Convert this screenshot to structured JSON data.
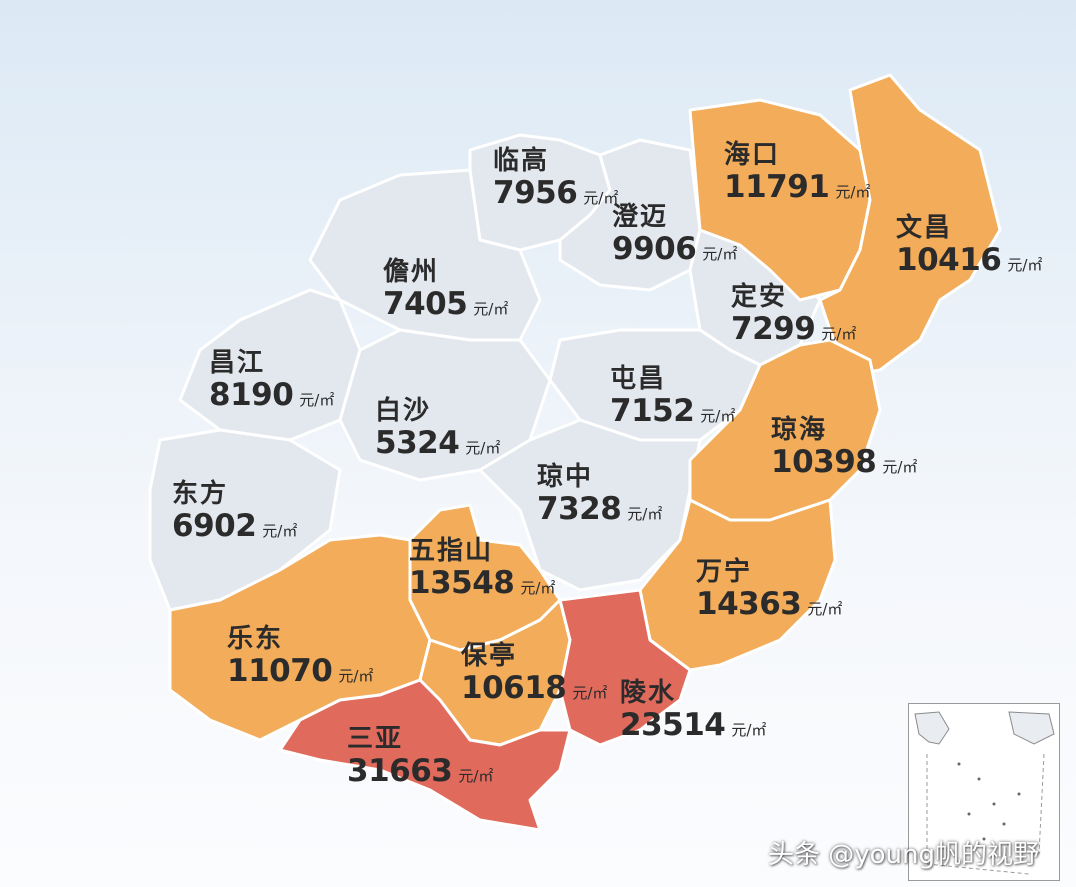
{
  "unit": "元/㎡",
  "colors": {
    "low": "#e3e8ef",
    "mid": "#f2ac5a",
    "high": "#e06a5c",
    "text": "#2b2b2b"
  },
  "regions": [
    {
      "name": "临高",
      "price": "7956",
      "tier": "low"
    },
    {
      "name": "澄迈",
      "price": "9906",
      "tier": "low"
    },
    {
      "name": "海口",
      "price": "11791",
      "tier": "mid"
    },
    {
      "name": "文昌",
      "price": "10416",
      "tier": "mid"
    },
    {
      "name": "儋州",
      "price": "7405",
      "tier": "low"
    },
    {
      "name": "定安",
      "price": "7299",
      "tier": "low"
    },
    {
      "name": "昌江",
      "price": "8190",
      "tier": "low"
    },
    {
      "name": "屯昌",
      "price": "7152",
      "tier": "low"
    },
    {
      "name": "白沙",
      "price": "5324",
      "tier": "low"
    },
    {
      "name": "琼海",
      "price": "10398",
      "tier": "mid"
    },
    {
      "name": "东方",
      "price": "6902",
      "tier": "low"
    },
    {
      "name": "琼中",
      "price": "7328",
      "tier": "low"
    },
    {
      "name": "五指山",
      "price": "13548",
      "tier": "mid"
    },
    {
      "name": "万宁",
      "price": "14363",
      "tier": "mid"
    },
    {
      "name": "乐东",
      "price": "11070",
      "tier": "mid"
    },
    {
      "name": "保亭",
      "price": "10618",
      "tier": "mid"
    },
    {
      "name": "陵水",
      "price": "23514",
      "tier": "high"
    },
    {
      "name": "三亚",
      "price": "31663",
      "tier": "high"
    }
  ],
  "watermark": "头条 @young帆的视野",
  "inset_icon": "south-china-sea-inset-map"
}
